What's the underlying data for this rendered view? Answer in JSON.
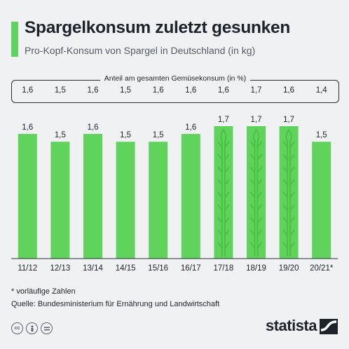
{
  "title": "Spargelkonsum zuletzt gesunken",
  "subtitle": "Pro-Kopf-Konsum von Spargel in Deutschland (in kg)",
  "share": {
    "label": "Anteil am gesamten Gemüsekonsum (in %)",
    "values": [
      "1,6",
      "1,5",
      "1,6",
      "1,5",
      "1,6",
      "1,6",
      "1,6",
      "1,7",
      "1,6",
      "1,4"
    ]
  },
  "chart_data": {
    "type": "bar",
    "categories": [
      "11/12",
      "12/13",
      "13/14",
      "14/15",
      "15/16",
      "16/17",
      "17/18",
      "18/19",
      "19/20",
      "20/21*"
    ],
    "values": [
      1.6,
      1.5,
      1.6,
      1.5,
      1.5,
      1.6,
      1.7,
      1.7,
      1.7,
      1.5
    ],
    "value_labels": [
      "1,6",
      "1,5",
      "1,6",
      "1,5",
      "1,5",
      "1,6",
      "1,7",
      "1,7",
      "1,7",
      "1,5"
    ],
    "highlighted": [
      false,
      false,
      false,
      false,
      false,
      false,
      true,
      true,
      true,
      false
    ],
    "title": "Spargelkonsum zuletzt gesunken",
    "xlabel": "",
    "ylabel": "",
    "ylim": [
      0,
      1.7
    ],
    "grid": false,
    "bar_color": "#5fd35b"
  },
  "footnote": "* vorläufige Zahlen",
  "source": "Quelle: Bundesministerium für Ernährung und Landwirtschaft",
  "license_icons": [
    "cc-icon",
    "person-icon",
    "equals-icon"
  ],
  "brand": "statista",
  "colors": {
    "accent": "#5fd35b",
    "background": "#f0f1f3",
    "text": "#1e2329"
  }
}
